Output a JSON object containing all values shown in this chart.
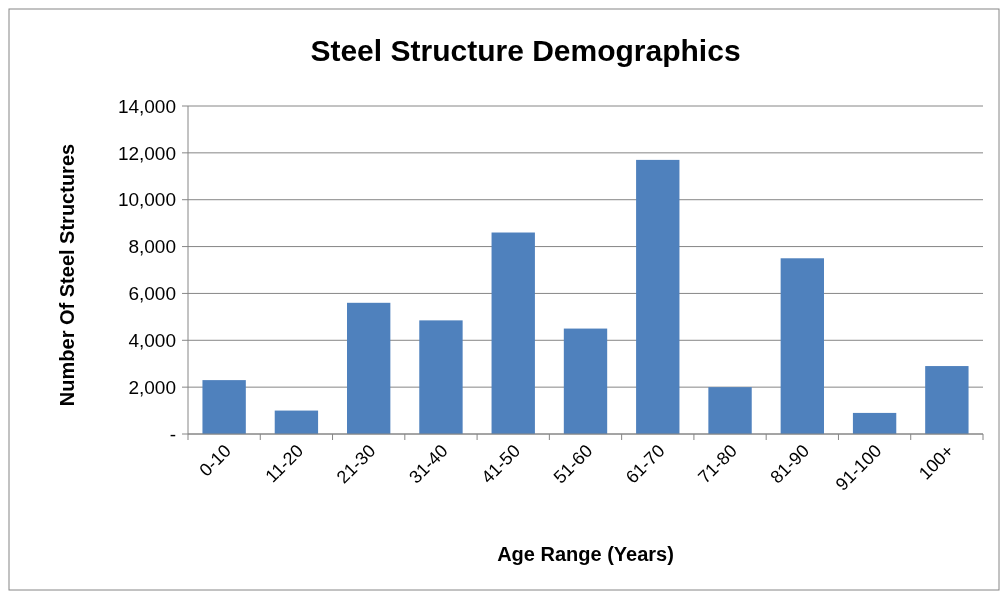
{
  "chart_data": {
    "type": "bar",
    "title": "Steel Structure Demographics",
    "xlabel": "Age Range (Years)",
    "ylabel": "Number Of Steel Structures",
    "categories": [
      "0-10",
      "11-20",
      "21-30",
      "31-40",
      "41-50",
      "51-60",
      "61-70",
      "71-80",
      "81-90",
      "91-100",
      "100+"
    ],
    "values": [
      2300,
      1000,
      5600,
      4850,
      8600,
      4500,
      11700,
      2000,
      7500,
      900,
      2900
    ],
    "color": "#4f81bd",
    "ylim": [
      0,
      14000
    ],
    "yticks": [
      {
        "value": 0,
        "label": "-"
      },
      {
        "value": 2000,
        "label": "2,000"
      },
      {
        "value": 4000,
        "label": "4,000"
      },
      {
        "value": 6000,
        "label": "6,000"
      },
      {
        "value": 8000,
        "label": "8,000"
      },
      {
        "value": 10000,
        "label": "10,000"
      },
      {
        "value": 12000,
        "label": "12,000"
      },
      {
        "value": 14000,
        "label": "14,000"
      }
    ],
    "grid": "y"
  }
}
